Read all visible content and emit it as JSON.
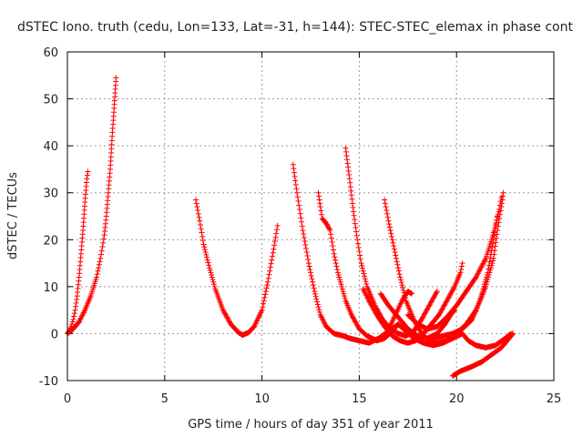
{
  "chart_data": {
    "type": "scatter",
    "title": "dSTEC Iono. truth (cedu, Lon=133, Lat=-31, h=144): STEC-STEC_elemax in phase cont",
    "xlabel": "GPS time / hours of day 351 of year 2011",
    "ylabel": "dSTEC  / TECUs",
    "xlim": [
      0,
      25
    ],
    "ylim": [
      -10,
      60
    ],
    "xticks": [
      0,
      5,
      10,
      15,
      20,
      25
    ],
    "yticks": [
      -10,
      0,
      10,
      20,
      30,
      40,
      50,
      60
    ],
    "grid": true,
    "marker": "+",
    "color": "#ff0000",
    "series": [
      {
        "points": [
          [
            0.0,
            0.0
          ],
          [
            0.1,
            0.5
          ],
          [
            0.2,
            1.5
          ],
          [
            0.3,
            3
          ],
          [
            0.4,
            5
          ],
          [
            0.5,
            8
          ],
          [
            0.6,
            12
          ],
          [
            0.7,
            17
          ],
          [
            0.8,
            22
          ],
          [
            0.9,
            28
          ],
          [
            1.0,
            33
          ],
          [
            1.05,
            34.5
          ]
        ]
      },
      {
        "points": [
          [
            0.0,
            0.0
          ],
          [
            0.3,
            1
          ],
          [
            0.6,
            2.5
          ],
          [
            0.9,
            5
          ],
          [
            1.2,
            8
          ],
          [
            1.5,
            12
          ],
          [
            1.7,
            16
          ],
          [
            1.9,
            21
          ],
          [
            2.0,
            25
          ],
          [
            2.1,
            30
          ],
          [
            2.2,
            35
          ],
          [
            2.3,
            42
          ],
          [
            2.4,
            48
          ],
          [
            2.5,
            54.5
          ]
        ]
      },
      {
        "points": [
          [
            6.6,
            28.5
          ],
          [
            6.8,
            24
          ],
          [
            7.0,
            19
          ],
          [
            7.3,
            14
          ],
          [
            7.6,
            9.5
          ],
          [
            8.0,
            5
          ],
          [
            8.4,
            2
          ],
          [
            8.8,
            0.2
          ],
          [
            9.0,
            -0.3
          ],
          [
            9.3,
            0.2
          ],
          [
            9.6,
            1.5
          ],
          [
            10.0,
            5
          ],
          [
            10.3,
            11
          ],
          [
            10.6,
            18
          ],
          [
            10.8,
            23
          ]
        ]
      },
      {
        "points": [
          [
            11.6,
            36
          ],
          [
            11.8,
            30
          ],
          [
            12.1,
            22
          ],
          [
            12.4,
            15
          ],
          [
            12.7,
            9
          ],
          [
            13.0,
            4
          ],
          [
            13.3,
            1.5
          ],
          [
            13.7,
            0
          ],
          [
            14.2,
            -0.5
          ],
          [
            14.5,
            -1
          ],
          [
            15.0,
            -1.5
          ],
          [
            15.5,
            -2
          ],
          [
            16.0,
            -1
          ],
          [
            16.5,
            0.5
          ],
          [
            17.0,
            2
          ],
          [
            17.4,
            0.5
          ],
          [
            17.8,
            -1
          ],
          [
            18.3,
            -2
          ],
          [
            18.8,
            -2.5
          ],
          [
            19.3,
            -2
          ],
          [
            19.8,
            -1
          ],
          [
            20.3,
            0
          ],
          [
            20.6,
            -1.5
          ],
          [
            21.0,
            -2.5
          ],
          [
            21.5,
            -3
          ],
          [
            22.0,
            -2.5
          ],
          [
            22.5,
            -1
          ],
          [
            22.8,
            0
          ]
        ]
      },
      {
        "points": [
          [
            12.9,
            30
          ],
          [
            13.0,
            27
          ],
          [
            13.1,
            24.5
          ],
          [
            13.3,
            23.5
          ],
          [
            13.5,
            22
          ],
          [
            13.7,
            17
          ],
          [
            13.9,
            13
          ],
          [
            14.1,
            10
          ],
          [
            14.3,
            7
          ],
          [
            14.6,
            4
          ],
          [
            15.0,
            1
          ],
          [
            15.4,
            -0.5
          ],
          [
            15.9,
            -1.5
          ],
          [
            16.3,
            -1
          ],
          [
            16.7,
            0.5
          ],
          [
            17.0,
            2
          ]
        ]
      },
      {
        "points": [
          [
            14.3,
            39.5
          ],
          [
            14.5,
            33
          ],
          [
            14.7,
            26
          ],
          [
            14.9,
            20
          ],
          [
            15.1,
            15
          ],
          [
            15.4,
            10
          ],
          [
            15.8,
            6
          ],
          [
            16.2,
            3
          ],
          [
            16.6,
            1
          ],
          [
            17.0,
            0
          ],
          [
            17.4,
            -0.5
          ],
          [
            17.8,
            0.5
          ],
          [
            18.2,
            3
          ],
          [
            18.6,
            6
          ],
          [
            19.0,
            9
          ]
        ]
      },
      {
        "points": [
          [
            15.2,
            9.5
          ],
          [
            15.5,
            7
          ],
          [
            15.9,
            4
          ],
          [
            16.3,
            1.5
          ],
          [
            16.7,
            -0.5
          ],
          [
            17.1,
            -1.5
          ],
          [
            17.5,
            -2
          ],
          [
            17.9,
            -1.5
          ],
          [
            18.3,
            0
          ],
          [
            18.7,
            2
          ],
          [
            19.1,
            4
          ],
          [
            19.5,
            7
          ],
          [
            19.9,
            10
          ],
          [
            20.2,
            13
          ],
          [
            20.3,
            15
          ]
        ]
      },
      {
        "points": [
          [
            16.1,
            8.5
          ],
          [
            16.5,
            6
          ],
          [
            17.0,
            3.5
          ],
          [
            17.5,
            1
          ],
          [
            18.0,
            -0.5
          ],
          [
            18.5,
            -1
          ],
          [
            19.0,
            0
          ],
          [
            19.4,
            2
          ],
          [
            19.7,
            4
          ],
          [
            19.9,
            5
          ]
        ]
      },
      {
        "points": [
          [
            16.4,
            0
          ],
          [
            16.8,
            3.5
          ],
          [
            17.2,
            7
          ],
          [
            17.5,
            9
          ],
          [
            17.7,
            8.5
          ]
        ]
      },
      {
        "points": [
          [
            16.3,
            28.5
          ],
          [
            16.5,
            24
          ],
          [
            16.8,
            18
          ],
          [
            17.1,
            12
          ],
          [
            17.4,
            7
          ],
          [
            17.8,
            3
          ],
          [
            18.2,
            0
          ],
          [
            18.6,
            -1.5
          ],
          [
            19.0,
            -2
          ],
          [
            19.5,
            -1.5
          ],
          [
            20.0,
            0
          ],
          [
            20.5,
            2
          ],
          [
            21.0,
            5
          ],
          [
            21.5,
            10
          ],
          [
            21.9,
            16
          ],
          [
            22.1,
            22
          ],
          [
            22.3,
            27
          ],
          [
            22.4,
            30
          ]
        ]
      },
      {
        "points": [
          [
            17.5,
            4
          ],
          [
            18.0,
            2
          ],
          [
            18.5,
            1
          ],
          [
            19.0,
            1.5
          ],
          [
            19.5,
            3.5
          ],
          [
            20.0,
            6
          ],
          [
            20.5,
            9
          ],
          [
            21.0,
            12
          ],
          [
            21.5,
            16
          ],
          [
            21.8,
            20
          ],
          [
            22.0,
            23
          ],
          [
            22.2,
            26.5
          ],
          [
            22.3,
            29
          ]
        ]
      },
      {
        "points": [
          [
            18.8,
            -1
          ],
          [
            19.3,
            -0.5
          ],
          [
            19.8,
            0
          ],
          [
            20.3,
            1
          ],
          [
            20.8,
            3
          ],
          [
            21.2,
            7
          ],
          [
            21.6,
            13
          ],
          [
            21.9,
            20
          ],
          [
            22.1,
            25
          ]
        ]
      },
      {
        "points": [
          [
            19.8,
            -9
          ],
          [
            20.2,
            -8
          ],
          [
            20.8,
            -7
          ],
          [
            21.3,
            -6
          ],
          [
            21.8,
            -4.5
          ],
          [
            22.3,
            -3
          ],
          [
            22.7,
            -1
          ],
          [
            22.9,
            0
          ]
        ]
      }
    ]
  }
}
